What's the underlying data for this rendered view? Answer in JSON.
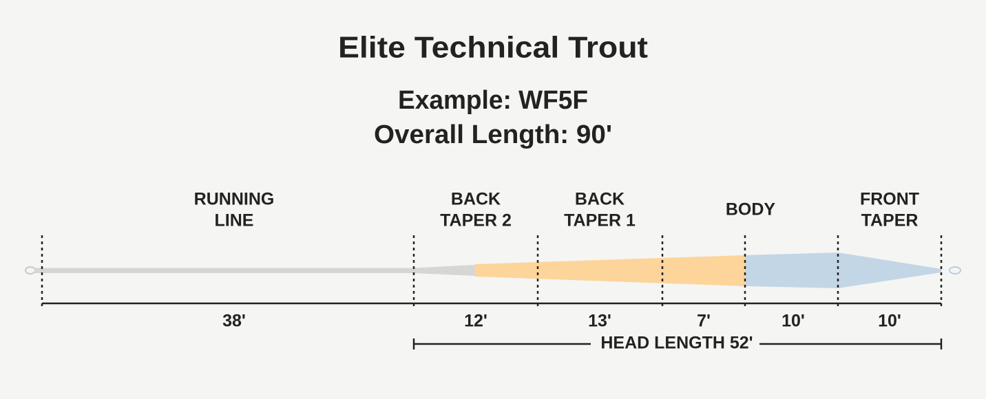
{
  "header": {
    "title": "Elite Technical Trout",
    "example": "Example: WF5F",
    "overall_length": "Overall Length: 90'"
  },
  "sections": [
    {
      "label": [
        "RUNNING",
        "LINE"
      ],
      "length": "38'"
    },
    {
      "label": [
        "BACK",
        "TAPER 2"
      ],
      "length": "12'"
    },
    {
      "label": [
        "BACK",
        "TAPER 1"
      ],
      "length": "13'"
    },
    {
      "label": [
        "BODY"
      ],
      "length": "7'"
    },
    {
      "label": [
        "FRONT",
        "TAPER"
      ],
      "length": "10'"
    }
  ],
  "extra_length": "10'",
  "head_length": "HEAD LENGTH 52'"
}
